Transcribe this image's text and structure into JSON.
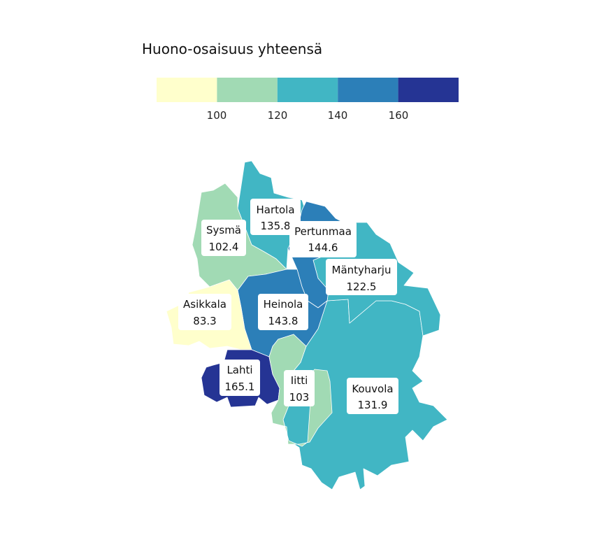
{
  "legend": {
    "title": "Huono-osaisuus yhteensä",
    "colors": [
      "#ffffcc",
      "#a1dab4",
      "#41b6c4",
      "#2c7fb8",
      "#253494"
    ],
    "ticks": [
      "100",
      "120",
      "140",
      "160"
    ]
  },
  "regions": [
    {
      "id": "hartola",
      "name": "Hartola",
      "value": "135.8",
      "color": "#41b6c4"
    },
    {
      "id": "sysma",
      "name": "Sysmä",
      "value": "102.4",
      "color": "#a1dab4"
    },
    {
      "id": "pertunmaa",
      "name": "Pertunmaa",
      "value": "144.6",
      "color": "#2c7fb8"
    },
    {
      "id": "mantyharju",
      "name": "Mäntyharju",
      "value": "122.5",
      "color": "#41b6c4"
    },
    {
      "id": "asikkala",
      "name": "Asikkala",
      "value": "83.3",
      "color": "#ffffcc"
    },
    {
      "id": "heinola",
      "name": "Heinola",
      "value": "143.8",
      "color": "#2c7fb8"
    },
    {
      "id": "lahti",
      "name": "Lahti",
      "value": "165.1",
      "color": "#253494"
    },
    {
      "id": "iitti",
      "name": "Iitti",
      "value": "103",
      "color": "#a1dab4"
    },
    {
      "id": "kouvola",
      "name": "Kouvola",
      "value": "131.9",
      "color": "#41b6c4"
    }
  ]
}
